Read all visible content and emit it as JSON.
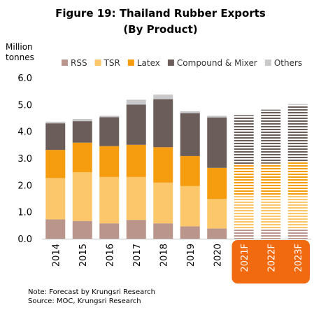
{
  "title_line1": "Figure 19: Thailand Rubber Exports",
  "title_line2": "(By Product)",
  "y_unit": "Million tonnes",
  "note": "Note: Forecast by Krungsri Research",
  "source": "Source:  MOC, Krungsri Research",
  "colors": {
    "RSS": "#b9958c",
    "TSR": "#fcc76b",
    "Latex": "#f59d0f",
    "Compound & Mixer": "#6b5d5a",
    "Others": "#c9c9c9",
    "forecast_highlight": "#f26a0f"
  },
  "chart_data": {
    "type": "bar",
    "stacked": true,
    "categories": [
      "2014",
      "2015",
      "2016",
      "2017",
      "2018",
      "2019",
      "2020",
      "2021F",
      "2022F",
      "2023F"
    ],
    "forecast_categories": [
      "2021F",
      "2022F",
      "2023F"
    ],
    "series": [
      {
        "name": "RSS",
        "values": [
          0.72,
          0.66,
          0.57,
          0.7,
          0.57,
          0.46,
          0.38,
          0.35,
          0.36,
          0.37
        ]
      },
      {
        "name": "TSR",
        "values": [
          1.54,
          1.82,
          1.73,
          1.6,
          1.52,
          1.5,
          1.1,
          1.25,
          1.22,
          1.25
        ]
      },
      {
        "name": "Latex",
        "values": [
          1.05,
          1.1,
          1.15,
          1.2,
          1.32,
          1.12,
          1.16,
          1.15,
          1.22,
          1.25
        ]
      },
      {
        "name": "Compound & Mixer",
        "values": [
          0.99,
          0.8,
          1.08,
          1.5,
          1.79,
          1.6,
          1.88,
          1.85,
          2.0,
          2.1
        ]
      },
      {
        "name": "Others",
        "values": [
          0.06,
          0.08,
          0.05,
          0.18,
          0.17,
          0.07,
          0.06,
          0.05,
          0.05,
          0.05
        ]
      }
    ],
    "ylim": [
      0,
      6
    ],
    "yticks": [
      "0.0",
      "1.0",
      "2.0",
      "3.0",
      "4.0",
      "5.0",
      "6.0"
    ],
    "legend_position": "top",
    "grid": false
  }
}
